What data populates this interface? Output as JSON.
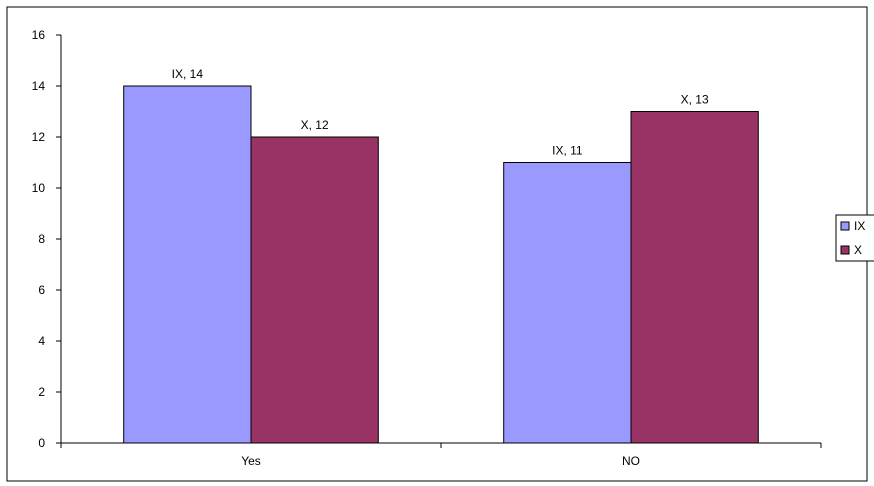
{
  "chart_data": {
    "type": "bar",
    "categories": [
      "Yes",
      "NO"
    ],
    "series": [
      {
        "name": "IX",
        "values": [
          14,
          11
        ],
        "color": "#9999ff",
        "data_labels": [
          "IX, 14",
          "IX, 11"
        ]
      },
      {
        "name": "X",
        "values": [
          12,
          13
        ],
        "color": "#993366",
        "data_labels": [
          "X, 12",
          "X, 13"
        ]
      }
    ],
    "title": "",
    "xlabel": "",
    "ylabel": "",
    "ylim": [
      0,
      16
    ],
    "yticks": [
      0,
      2,
      4,
      6,
      8,
      10,
      12,
      14,
      16
    ],
    "ytick_labels": [
      "0",
      "2",
      "4",
      "6",
      "8",
      "10",
      "12",
      "14",
      "16"
    ],
    "grid": false,
    "legend": "right"
  }
}
